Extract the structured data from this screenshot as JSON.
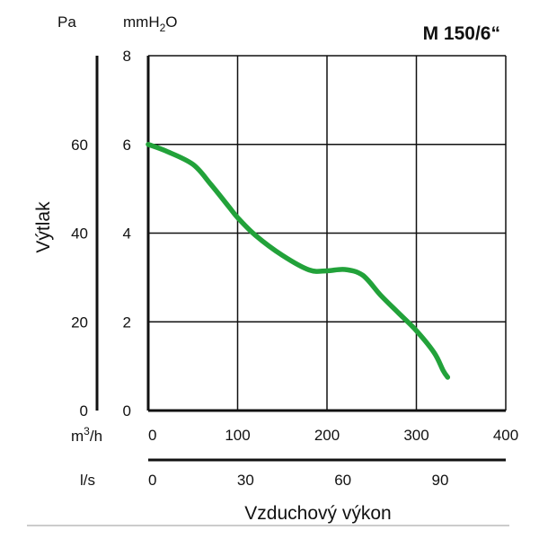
{
  "chart_data": {
    "type": "line",
    "title": "M 150/6“",
    "ylabel": "Výtlak",
    "xlabel": "Vzduchový výkon",
    "units": {
      "pa": "Pa",
      "mmh2o_base": "mmH",
      "mmh2o_sub": "2",
      "mmh2o_end": "O",
      "m3h_base": "m",
      "m3h_sup": "3",
      "m3h_end": "/h",
      "ls": "l/s"
    },
    "x_unit": "m3/h",
    "y_unit": "mmH2O",
    "xlim": [
      0,
      400
    ],
    "ylim": [
      0,
      8
    ],
    "x_ticks": [
      0,
      100,
      200,
      300,
      400
    ],
    "y_ticks": [
      0,
      2,
      4,
      6,
      8
    ],
    "pa_ticks": [
      0,
      20,
      40,
      60
    ],
    "ls_ticks": [
      0,
      30,
      60,
      90
    ],
    "grid": true,
    "series": [
      {
        "color": "#22a23a",
        "x": [
          0,
          20,
          50,
          70,
          90,
          100,
          120,
          150,
          180,
          200,
          220,
          240,
          260,
          280,
          300,
          320,
          330,
          335
        ],
        "y": [
          6.0,
          5.85,
          5.55,
          5.1,
          4.6,
          4.35,
          3.95,
          3.5,
          3.17,
          3.15,
          3.18,
          3.05,
          2.6,
          2.2,
          1.8,
          1.3,
          0.9,
          0.75
        ]
      }
    ]
  }
}
